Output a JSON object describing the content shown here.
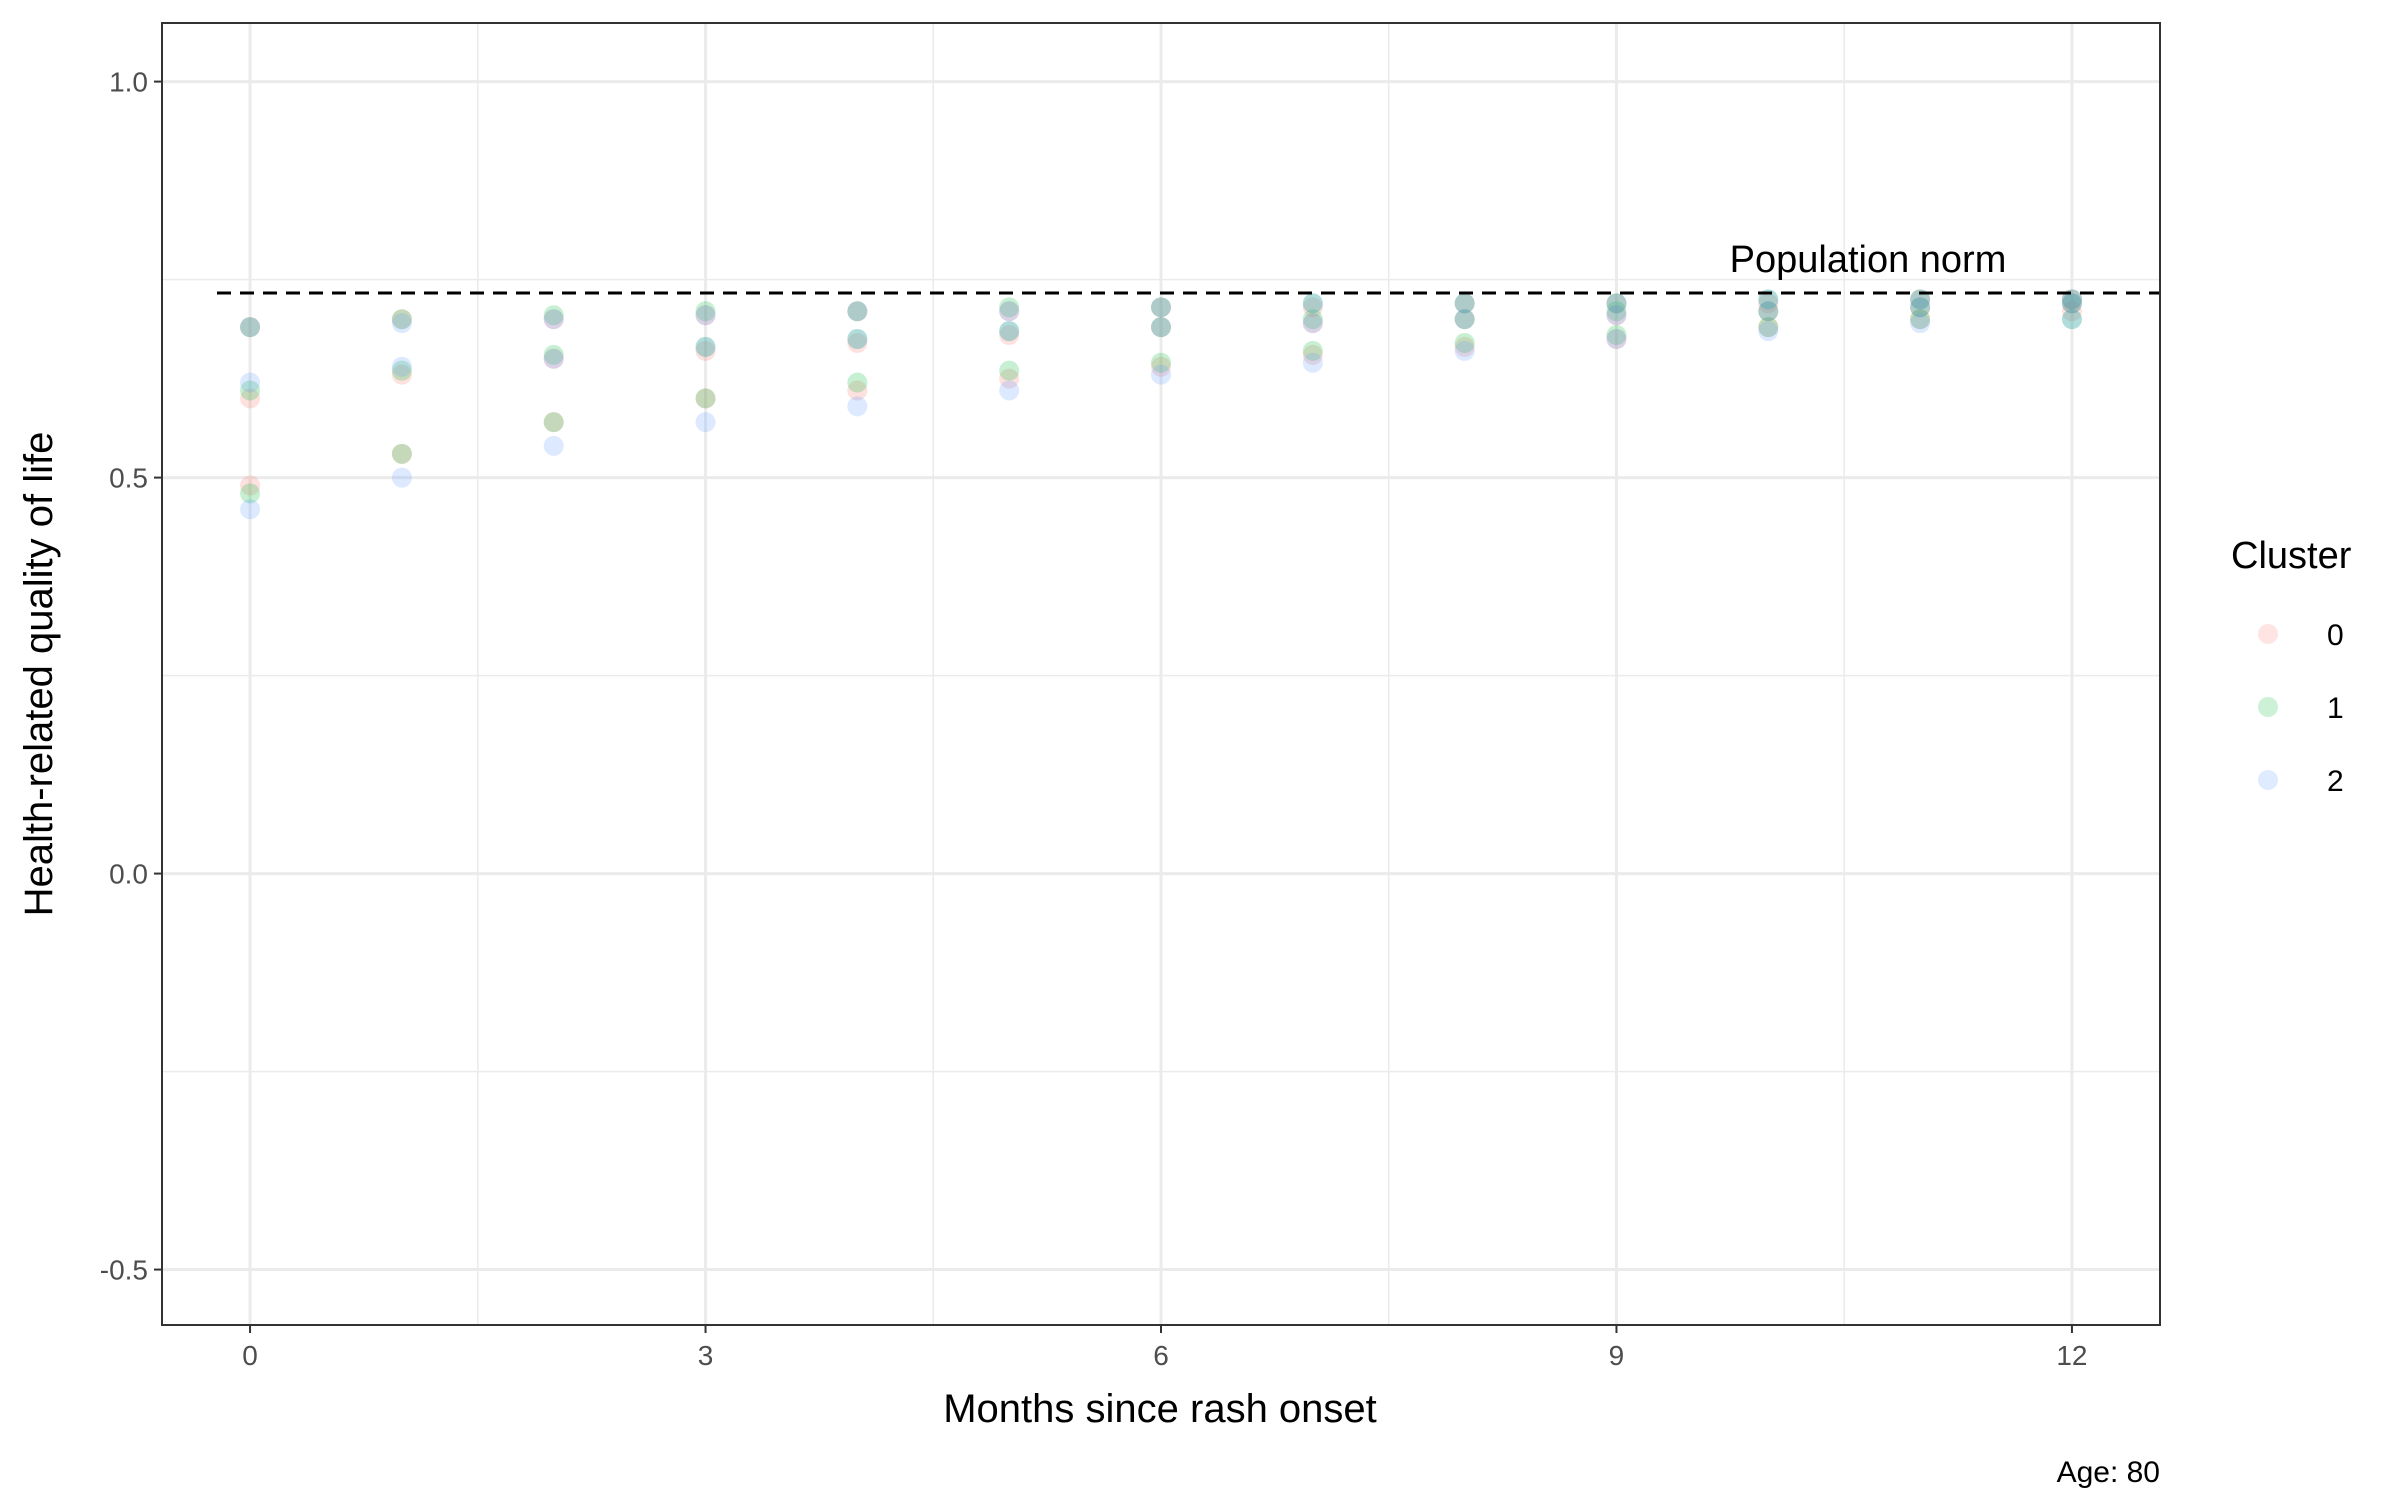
{
  "chart_data": {
    "type": "scatter",
    "xlabel": "Months since rash onset",
    "ylabel": "Health-related quality of life",
    "caption": "Age: 80",
    "legend_title": "Cluster",
    "legend_position": "right",
    "grid": true,
    "xlim": [
      -0.58,
      12.58
    ],
    "ylim": [
      -0.57,
      1.074
    ],
    "xticks": [
      0,
      3,
      6,
      9,
      12
    ],
    "yticks": [
      -0.5,
      {
        "value": 0,
        "label": "0.0"
      },
      0.5,
      {
        "value": 1,
        "label": "1.0"
      }
    ],
    "hline": {
      "value": 0.733,
      "label": "Population norm"
    },
    "series": [
      {
        "name": "0",
        "color": "#F8766D",
        "x": [
          0,
          0,
          0,
          1,
          1,
          1,
          2,
          2,
          2,
          3,
          3,
          3,
          4,
          4,
          4,
          5,
          5,
          5,
          6,
          6,
          6,
          7,
          7,
          7,
          8,
          8,
          8,
          9,
          9,
          9,
          10,
          10,
          10,
          11,
          11,
          11,
          12,
          12,
          12
        ],
        "values": [
          0.49,
          0.6,
          0.69,
          0.53,
          0.63,
          0.7,
          0.57,
          0.65,
          0.7,
          0.6,
          0.66,
          0.705,
          0.61,
          0.67,
          0.71,
          0.625,
          0.68,
          0.71,
          0.64,
          0.69,
          0.715,
          0.655,
          0.695,
          0.715,
          0.665,
          0.7,
          0.72,
          0.675,
          0.705,
          0.72,
          0.69,
          0.71,
          0.72,
          0.7,
          0.715,
          0.725,
          0.71,
          0.72,
          0.725
        ]
      },
      {
        "name": "1",
        "color": "#00BA38",
        "x": [
          0,
          0,
          0,
          1,
          1,
          1,
          2,
          2,
          2,
          3,
          3,
          3,
          4,
          4,
          4,
          5,
          5,
          5,
          6,
          6,
          6,
          7,
          7,
          7,
          8,
          8,
          8,
          9,
          9,
          9,
          10,
          10,
          10,
          11,
          11,
          11,
          12,
          12,
          12
        ],
        "values": [
          0.48,
          0.61,
          0.69,
          0.53,
          0.635,
          0.7,
          0.57,
          0.655,
          0.705,
          0.6,
          0.665,
          0.71,
          0.62,
          0.675,
          0.71,
          0.635,
          0.685,
          0.715,
          0.645,
          0.69,
          0.715,
          0.66,
          0.7,
          0.72,
          0.67,
          0.7,
          0.72,
          0.68,
          0.71,
          0.72,
          0.69,
          0.71,
          0.725,
          0.7,
          0.715,
          0.725,
          0.7,
          0.72,
          0.725
        ]
      },
      {
        "name": "2",
        "color": "#619CFF",
        "x": [
          0,
          0,
          0,
          1,
          1,
          1,
          2,
          2,
          2,
          3,
          3,
          3,
          4,
          4,
          4,
          5,
          5,
          5,
          6,
          6,
          6,
          7,
          7,
          7,
          8,
          8,
          8,
          9,
          9,
          9,
          10,
          10,
          10,
          11,
          11,
          11,
          12,
          12,
          12
        ],
        "values": [
          0.46,
          0.62,
          0.69,
          0.5,
          0.64,
          0.695,
          0.54,
          0.65,
          0.7,
          0.57,
          0.665,
          0.705,
          0.59,
          0.675,
          0.71,
          0.61,
          0.685,
          0.71,
          0.63,
          0.69,
          0.715,
          0.645,
          0.695,
          0.72,
          0.66,
          0.7,
          0.72,
          0.675,
          0.705,
          0.72,
          0.685,
          0.71,
          0.725,
          0.695,
          0.715,
          0.725,
          0.7,
          0.72,
          0.725
        ]
      }
    ]
  }
}
